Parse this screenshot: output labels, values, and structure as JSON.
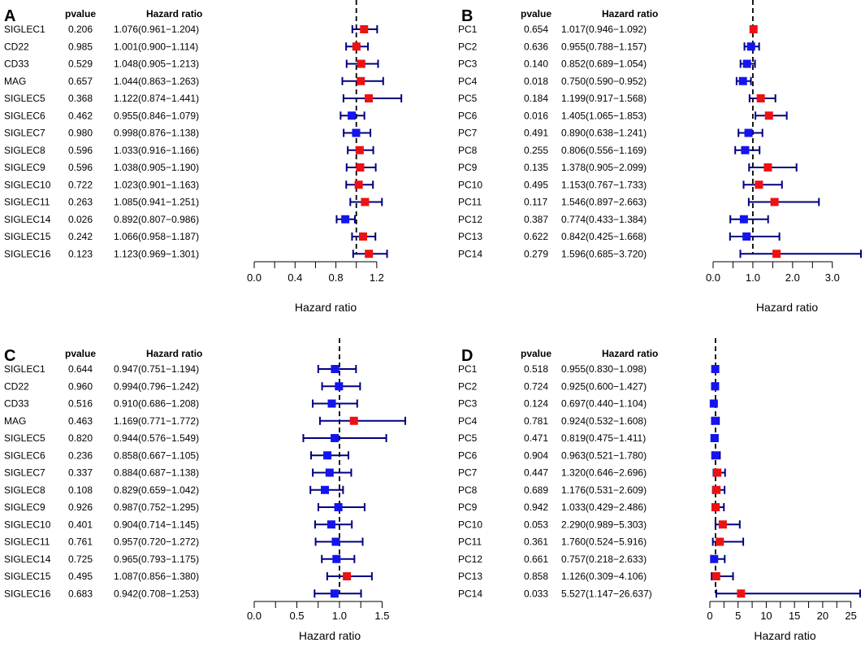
{
  "colors": {
    "risk": "#ee1111",
    "protective": "#1414f0",
    "ci": "#000080",
    "axis": "#000000"
  },
  "chart_data": [
    {
      "type": "forest",
      "panel": "A",
      "col_pvalue": "pvalue",
      "col_hr": "Hazard ratio",
      "xlabel": "Hazard ratio",
      "xlim": [
        0,
        1.4
      ],
      "xticks": [
        "0.0",
        "0.4",
        "0.8",
        "1.2"
      ],
      "xtick_values": [
        0,
        0.4,
        0.8,
        1.2
      ],
      "rows": [
        {
          "name": "SIGLEC1",
          "pvalue": "0.206",
          "hr_text": "1.076(0.961−1.204)",
          "hr": 1.076,
          "lo": 0.961,
          "hi": 1.204
        },
        {
          "name": "CD22",
          "pvalue": "0.985",
          "hr_text": "1.001(0.900−1.114)",
          "hr": 1.001,
          "lo": 0.9,
          "hi": 1.114
        },
        {
          "name": "CD33",
          "pvalue": "0.529",
          "hr_text": "1.048(0.905−1.213)",
          "hr": 1.048,
          "lo": 0.905,
          "hi": 1.213
        },
        {
          "name": "MAG",
          "pvalue": "0.657",
          "hr_text": "1.044(0.863−1.263)",
          "hr": 1.044,
          "lo": 0.863,
          "hi": 1.263
        },
        {
          "name": "SIGLEC5",
          "pvalue": "0.368",
          "hr_text": "1.122(0.874−1.441)",
          "hr": 1.122,
          "lo": 0.874,
          "hi": 1.441
        },
        {
          "name": "SIGLEC6",
          "pvalue": "0.462",
          "hr_text": "0.955(0.846−1.079)",
          "hr": 0.955,
          "lo": 0.846,
          "hi": 1.079
        },
        {
          "name": "SIGLEC7",
          "pvalue": "0.980",
          "hr_text": "0.998(0.876−1.138)",
          "hr": 0.998,
          "lo": 0.876,
          "hi": 1.138
        },
        {
          "name": "SIGLEC8",
          "pvalue": "0.596",
          "hr_text": "1.033(0.916−1.166)",
          "hr": 1.033,
          "lo": 0.916,
          "hi": 1.166
        },
        {
          "name": "SIGLEC9",
          "pvalue": "0.596",
          "hr_text": "1.038(0.905−1.190)",
          "hr": 1.038,
          "lo": 0.905,
          "hi": 1.19
        },
        {
          "name": "SIGLEC10",
          "pvalue": "0.722",
          "hr_text": "1.023(0.901−1.163)",
          "hr": 1.023,
          "lo": 0.901,
          "hi": 1.163
        },
        {
          "name": "SIGLEC11",
          "pvalue": "0.263",
          "hr_text": "1.085(0.941−1.251)",
          "hr": 1.085,
          "lo": 0.941,
          "hi": 1.251
        },
        {
          "name": "SIGLEC14",
          "pvalue": "0.026",
          "hr_text": "0.892(0.807−0.986)",
          "hr": 0.892,
          "lo": 0.807,
          "hi": 0.986
        },
        {
          "name": "SIGLEC15",
          "pvalue": "0.242",
          "hr_text": "1.066(0.958−1.187)",
          "hr": 1.066,
          "lo": 0.958,
          "hi": 1.187
        },
        {
          "name": "SIGLEC16",
          "pvalue": "0.123",
          "hr_text": "1.123(0.969−1.301)",
          "hr": 1.123,
          "lo": 0.969,
          "hi": 1.301
        }
      ]
    },
    {
      "type": "forest",
      "panel": "B",
      "col_pvalue": "pvalue",
      "col_hr": "Hazard ratio",
      "xlabel": "Hazard ratio",
      "xlim": [
        0,
        3.72
      ],
      "xticks": [
        "0.0",
        "1.0",
        "2.0",
        "3.0"
      ],
      "xtick_values": [
        0,
        1,
        2,
        3
      ],
      "rows": [
        {
          "name": "PC1",
          "pvalue": "0.654",
          "hr_text": "1.017(0.946−1.092)",
          "hr": 1.017,
          "lo": 0.946,
          "hi": 1.092
        },
        {
          "name": "PC2",
          "pvalue": "0.636",
          "hr_text": "0.955(0.788−1.157)",
          "hr": 0.955,
          "lo": 0.788,
          "hi": 1.157
        },
        {
          "name": "PC3",
          "pvalue": "0.140",
          "hr_text": "0.852(0.689−1.054)",
          "hr": 0.852,
          "lo": 0.689,
          "hi": 1.054
        },
        {
          "name": "PC4",
          "pvalue": "0.018",
          "hr_text": "0.750(0.590−0.952)",
          "hr": 0.75,
          "lo": 0.59,
          "hi": 0.952
        },
        {
          "name": "PC5",
          "pvalue": "0.184",
          "hr_text": "1.199(0.917−1.568)",
          "hr": 1.199,
          "lo": 0.917,
          "hi": 1.568
        },
        {
          "name": "PC6",
          "pvalue": "0.016",
          "hr_text": "1.405(1.065−1.853)",
          "hr": 1.405,
          "lo": 1.065,
          "hi": 1.853
        },
        {
          "name": "PC7",
          "pvalue": "0.491",
          "hr_text": "0.890(0.638−1.241)",
          "hr": 0.89,
          "lo": 0.638,
          "hi": 1.241
        },
        {
          "name": "PC8",
          "pvalue": "0.255",
          "hr_text": "0.806(0.556−1.169)",
          "hr": 0.806,
          "lo": 0.556,
          "hi": 1.169
        },
        {
          "name": "PC9",
          "pvalue": "0.135",
          "hr_text": "1.378(0.905−2.099)",
          "hr": 1.378,
          "lo": 0.905,
          "hi": 2.099
        },
        {
          "name": "PC10",
          "pvalue": "0.495",
          "hr_text": "1.153(0.767−1.733)",
          "hr": 1.153,
          "lo": 0.767,
          "hi": 1.733
        },
        {
          "name": "PC11",
          "pvalue": "0.117",
          "hr_text": "1.546(0.897−2.663)",
          "hr": 1.546,
          "lo": 0.897,
          "hi": 2.663
        },
        {
          "name": "PC12",
          "pvalue": "0.387",
          "hr_text": "0.774(0.433−1.384)",
          "hr": 0.774,
          "lo": 0.433,
          "hi": 1.384
        },
        {
          "name": "PC13",
          "pvalue": "0.622",
          "hr_text": "0.842(0.425−1.668)",
          "hr": 0.842,
          "lo": 0.425,
          "hi": 1.668
        },
        {
          "name": "PC14",
          "pvalue": "0.279",
          "hr_text": "1.596(0.685−3.720)",
          "hr": 1.596,
          "lo": 0.685,
          "hi": 3.72
        }
      ]
    },
    {
      "type": "forest",
      "panel": "C",
      "col_pvalue": "pvalue",
      "col_hr": "Hazard ratio",
      "xlabel": "Hazard ratio",
      "xlim": [
        0,
        1.772
      ],
      "xticks": [
        "0.0",
        "0.5",
        "1.0",
        "1.5"
      ],
      "xtick_values": [
        0,
        0.5,
        1.0,
        1.5
      ],
      "rows": [
        {
          "name": "SIGLEC1",
          "pvalue": "0.644",
          "hr_text": "0.947(0.751−1.194)",
          "hr": 0.947,
          "lo": 0.751,
          "hi": 1.194
        },
        {
          "name": "CD22",
          "pvalue": "0.960",
          "hr_text": "0.994(0.796−1.242)",
          "hr": 0.994,
          "lo": 0.796,
          "hi": 1.242
        },
        {
          "name": "CD33",
          "pvalue": "0.516",
          "hr_text": "0.910(0.686−1.208)",
          "hr": 0.91,
          "lo": 0.686,
          "hi": 1.208
        },
        {
          "name": "MAG",
          "pvalue": "0.463",
          "hr_text": "1.169(0.771−1.772)",
          "hr": 1.169,
          "lo": 0.771,
          "hi": 1.772
        },
        {
          "name": "SIGLEC5",
          "pvalue": "0.820",
          "hr_text": "0.944(0.576−1.549)",
          "hr": 0.944,
          "lo": 0.576,
          "hi": 1.549
        },
        {
          "name": "SIGLEC6",
          "pvalue": "0.236",
          "hr_text": "0.858(0.667−1.105)",
          "hr": 0.858,
          "lo": 0.667,
          "hi": 1.105
        },
        {
          "name": "SIGLEC7",
          "pvalue": "0.337",
          "hr_text": "0.884(0.687−1.138)",
          "hr": 0.884,
          "lo": 0.687,
          "hi": 1.138
        },
        {
          "name": "SIGLEC8",
          "pvalue": "0.108",
          "hr_text": "0.829(0.659−1.042)",
          "hr": 0.829,
          "lo": 0.659,
          "hi": 1.042
        },
        {
          "name": "SIGLEC9",
          "pvalue": "0.926",
          "hr_text": "0.987(0.752−1.295)",
          "hr": 0.987,
          "lo": 0.752,
          "hi": 1.295
        },
        {
          "name": "SIGLEC10",
          "pvalue": "0.401",
          "hr_text": "0.904(0.714−1.145)",
          "hr": 0.904,
          "lo": 0.714,
          "hi": 1.145
        },
        {
          "name": "SIGLEC11",
          "pvalue": "0.761",
          "hr_text": "0.957(0.720−1.272)",
          "hr": 0.957,
          "lo": 0.72,
          "hi": 1.272
        },
        {
          "name": "SIGLEC14",
          "pvalue": "0.725",
          "hr_text": "0.965(0.793−1.175)",
          "hr": 0.965,
          "lo": 0.793,
          "hi": 1.175
        },
        {
          "name": "SIGLEC15",
          "pvalue": "0.495",
          "hr_text": "1.087(0.856−1.380)",
          "hr": 1.087,
          "lo": 0.856,
          "hi": 1.38
        },
        {
          "name": "SIGLEC16",
          "pvalue": "0.683",
          "hr_text": "0.942(0.708−1.253)",
          "hr": 0.942,
          "lo": 0.708,
          "hi": 1.253
        }
      ]
    },
    {
      "type": "forest",
      "panel": "D",
      "col_pvalue": "pvalue",
      "col_hr": "Hazard ratio",
      "xlabel": "Hazard ratio",
      "xlim": [
        0,
        26.637
      ],
      "xticks": [
        "0",
        "5",
        "10",
        "15",
        "20",
        "25"
      ],
      "xtick_values": [
        0,
        5,
        10,
        15,
        20,
        25
      ],
      "rows": [
        {
          "name": "PC1",
          "pvalue": "0.518",
          "hr_text": "0.955(0.830−1.098)",
          "hr": 0.955,
          "lo": 0.83,
          "hi": 1.098
        },
        {
          "name": "PC2",
          "pvalue": "0.724",
          "hr_text": "0.925(0.600−1.427)",
          "hr": 0.925,
          "lo": 0.6,
          "hi": 1.427
        },
        {
          "name": "PC3",
          "pvalue": "0.124",
          "hr_text": "0.697(0.440−1.104)",
          "hr": 0.697,
          "lo": 0.44,
          "hi": 1.104
        },
        {
          "name": "PC4",
          "pvalue": "0.781",
          "hr_text": "0.924(0.532−1.608)",
          "hr": 0.924,
          "lo": 0.532,
          "hi": 1.608
        },
        {
          "name": "PC5",
          "pvalue": "0.471",
          "hr_text": "0.819(0.475−1.411)",
          "hr": 0.819,
          "lo": 0.475,
          "hi": 1.411
        },
        {
          "name": "PC6",
          "pvalue": "0.904",
          "hr_text": "0.963(0.521−1.780)",
          "hr": 0.963,
          "lo": 0.521,
          "hi": 1.78
        },
        {
          "name": "PC7",
          "pvalue": "0.447",
          "hr_text": "1.320(0.646−2.696)",
          "hr": 1.32,
          "lo": 0.646,
          "hi": 2.696
        },
        {
          "name": "PC8",
          "pvalue": "0.689",
          "hr_text": "1.176(0.531−2.609)",
          "hr": 1.176,
          "lo": 0.531,
          "hi": 2.609
        },
        {
          "name": "PC9",
          "pvalue": "0.942",
          "hr_text": "1.033(0.429−2.486)",
          "hr": 1.033,
          "lo": 0.429,
          "hi": 2.486
        },
        {
          "name": "PC10",
          "pvalue": "0.053",
          "hr_text": "2.290(0.989−5.303)",
          "hr": 2.29,
          "lo": 0.989,
          "hi": 5.303
        },
        {
          "name": "PC11",
          "pvalue": "0.361",
          "hr_text": "1.760(0.524−5.916)",
          "hr": 1.76,
          "lo": 0.524,
          "hi": 5.916
        },
        {
          "name": "PC12",
          "pvalue": "0.661",
          "hr_text": "0.757(0.218−2.633)",
          "hr": 0.757,
          "lo": 0.218,
          "hi": 2.633
        },
        {
          "name": "PC13",
          "pvalue": "0.858",
          "hr_text": "1.126(0.309−4.106)",
          "hr": 1.126,
          "lo": 0.309,
          "hi": 4.106
        },
        {
          "name": "PC14",
          "pvalue": "0.033",
          "hr_text": "5.527(1.147−26.637)",
          "hr": 5.527,
          "lo": 1.147,
          "hi": 26.637
        }
      ]
    }
  ]
}
